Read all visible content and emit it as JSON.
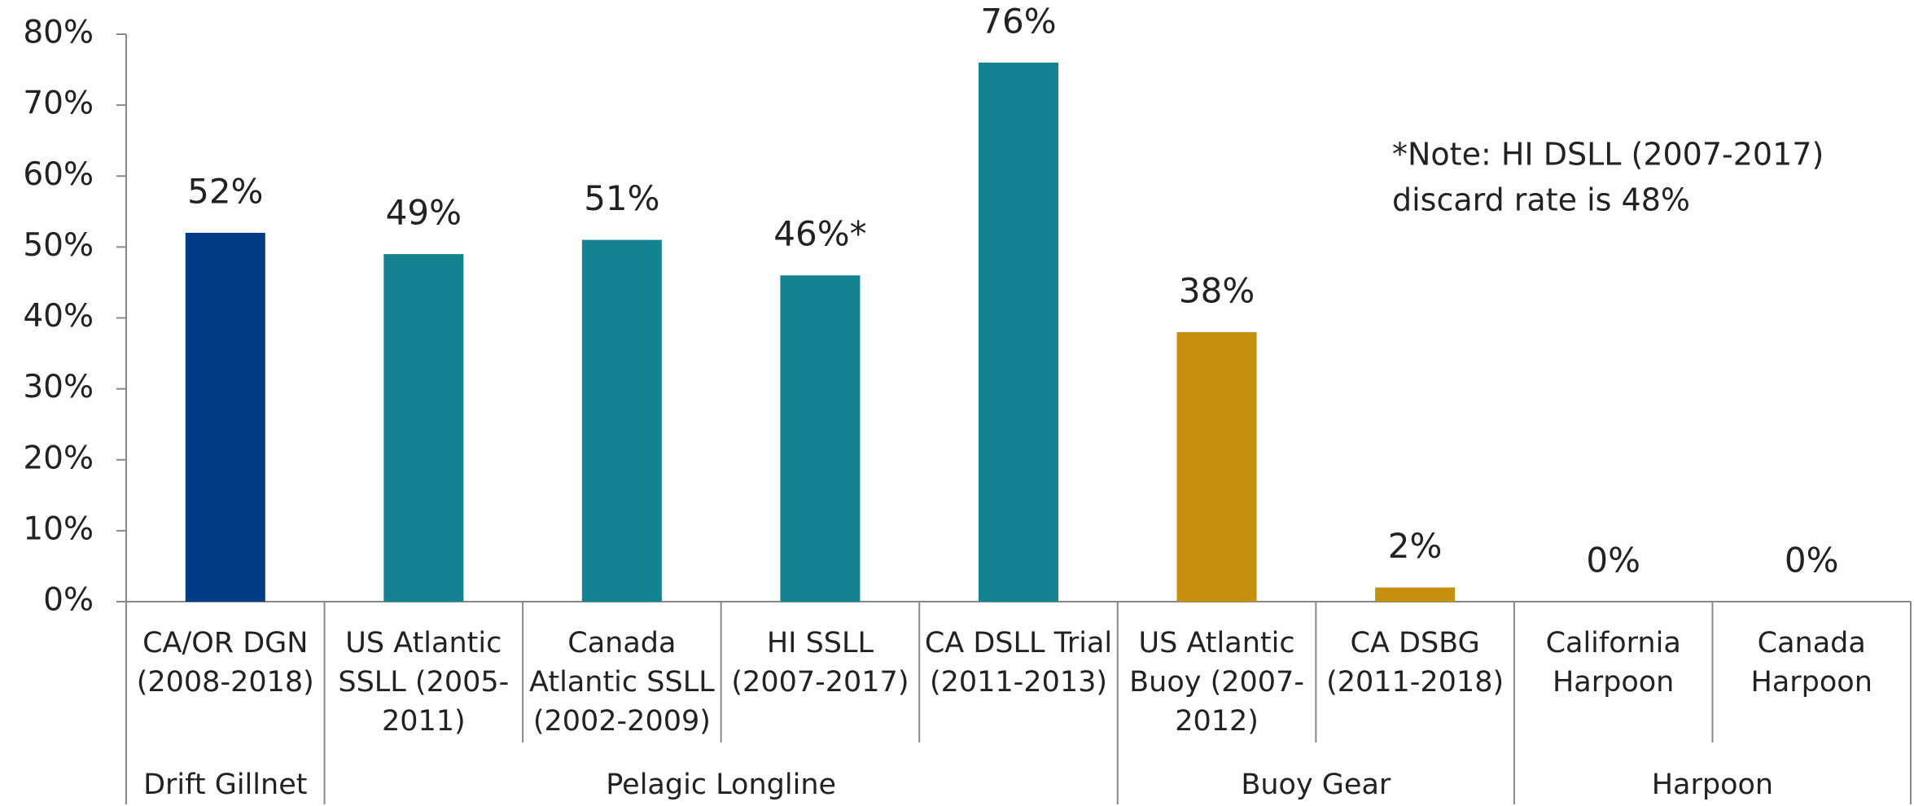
{
  "chart_data": {
    "type": "bar",
    "categories": [
      [
        "CA/OR DGN",
        "(2008-2018)"
      ],
      [
        "US Atlantic",
        "SSLL (2005-",
        "2011)"
      ],
      [
        "Canada",
        "Atlantic SSLL",
        "(2002-2009)"
      ],
      [
        "HI SSLL",
        "(2007-2017)"
      ],
      [
        "CA DSLL Trial",
        "(2011-2013)"
      ],
      [
        "US Atlantic",
        "Buoy (2007-",
        "2012)"
      ],
      [
        "CA DSBG",
        "(2011-2018)"
      ],
      [
        "California",
        "Harpoon"
      ],
      [
        "Canada",
        "Harpoon"
      ]
    ],
    "values": [
      52,
      49,
      51,
      46,
      76,
      38,
      2,
      0,
      0
    ],
    "value_labels": [
      "52%",
      "49%",
      "51%",
      "46%*",
      "76%",
      "38%",
      "2%",
      "0%",
      "0%"
    ],
    "colors": [
      "#003b87",
      "#138391",
      "#138391",
      "#138391",
      "#138391",
      "#c78f0e",
      "#c78f0e",
      "#c78f0e",
      "#c78f0e"
    ],
    "groups": [
      {
        "name": "Drift Gillnet",
        "size": 1
      },
      {
        "name": "Pelagic Longline",
        "size": 4
      },
      {
        "name": "Buoy Gear",
        "size": 2
      },
      {
        "name": "Harpoon",
        "size": 2
      }
    ],
    "annotation": [
      "*Note: HI DSLL (2007-2017)",
      "discard rate is 48%"
    ],
    "ylim": [
      0,
      80
    ],
    "yticks": [
      {
        "value": 0,
        "label": "0%"
      },
      {
        "value": 10,
        "label": "10%"
      },
      {
        "value": 20,
        "label": "20%"
      },
      {
        "value": 30,
        "label": "30%"
      },
      {
        "value": 40,
        "label": "40%"
      },
      {
        "value": 50,
        "label": "50%"
      },
      {
        "value": 60,
        "label": "60%"
      },
      {
        "value": 70,
        "label": "70%"
      },
      {
        "value": 80,
        "label": "80%"
      }
    ]
  }
}
